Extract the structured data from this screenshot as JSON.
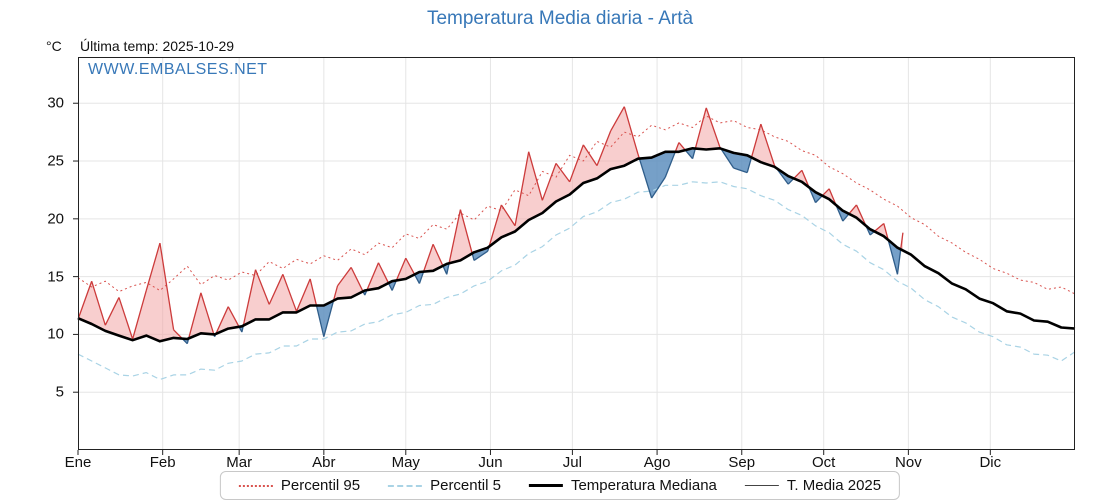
{
  "header": {
    "title": "Temperatura Media diaria - Artà",
    "unit_label": "°C",
    "last_temp_label": "Última temp: 2025-10-29",
    "watermark": "WWW.EMBALSES.NET"
  },
  "colors": {
    "title_blue": "#3878b8",
    "frame": "#222222",
    "grid": "#e5e5e5",
    "tick": "#222222"
  },
  "legend": {
    "items": [
      {
        "label": "Percentil 95"
      },
      {
        "label": "Percentil 5"
      },
      {
        "label": "Temperatura Mediana"
      },
      {
        "label": "T. Media 2025"
      }
    ]
  },
  "chart_data": {
    "type": "line",
    "title": "Temperatura Media diaria - Artà",
    "xlabel": "",
    "ylabel": "°C",
    "ylim": [
      0,
      34
    ],
    "yticks": [
      5,
      10,
      15,
      20,
      25,
      30
    ],
    "x_unit": "day_of_year",
    "x_total_days": 365,
    "x_months": [
      "Ene",
      "Feb",
      "Mar",
      "Abr",
      "May",
      "Jun",
      "Jul",
      "Ago",
      "Sep",
      "Oct",
      "Nov",
      "Dic"
    ],
    "month_start_days": [
      0,
      31,
      59,
      90,
      120,
      151,
      181,
      212,
      243,
      273,
      304,
      334
    ],
    "grid": true,
    "legend_position": "bottom",
    "fills": {
      "above_color": "#f2a6a6",
      "above_opacity": 0.55,
      "above_edge": "#cc3b3b",
      "below_color": "#5e8fbe",
      "below_opacity": 0.85,
      "below_edge": "#2f5d8a",
      "between": [
        "T. Media 2025",
        "Temperatura Mediana"
      ]
    },
    "series": [
      {
        "name": "Percentil 95",
        "style": "dotted",
        "color": "#d9534f",
        "width": 1,
        "x0": 0,
        "dx": 5,
        "y": [
          14.9,
          14.1,
          14.6,
          13.7,
          14.2,
          14.5,
          13.8,
          14.8,
          15.9,
          14.3,
          15.1,
          14.7,
          15.4,
          15.1,
          16.3,
          15.7,
          16.5,
          16.1,
          16.8,
          16.4,
          17.4,
          16.9,
          17.9,
          17.5,
          18.7,
          18.3,
          19.5,
          19.1,
          20.5,
          19.9,
          21.1,
          20.7,
          22.5,
          22.0,
          24.1,
          23.6,
          25.5,
          25.0,
          26.7,
          26.2,
          27.5,
          27.1,
          28.1,
          27.7,
          28.3,
          27.9,
          28.9,
          28.3,
          28.5,
          27.9,
          27.7,
          27.1,
          26.7,
          25.9,
          25.5,
          24.5,
          23.9,
          23.1,
          22.5,
          21.7,
          21.1,
          20.1,
          19.5,
          18.5,
          17.9,
          17.1,
          16.5,
          15.7,
          15.3,
          14.7,
          14.5,
          13.9,
          14.1,
          13.5
        ]
      },
      {
        "name": "Percentil 5",
        "style": "dashed",
        "color": "#a9d3e5",
        "width": 1.2,
        "x0": 0,
        "dx": 5,
        "y": [
          8.3,
          7.7,
          7.1,
          6.5,
          6.4,
          6.7,
          6.1,
          6.5,
          6.5,
          7.0,
          6.9,
          7.5,
          7.7,
          8.3,
          8.4,
          9.0,
          9.0,
          9.6,
          9.6,
          10.2,
          10.3,
          10.9,
          11.1,
          11.7,
          11.9,
          12.5,
          12.6,
          13.2,
          13.5,
          14.2,
          14.6,
          15.5,
          16.0,
          17.0,
          17.6,
          18.6,
          19.2,
          20.2,
          20.6,
          21.4,
          21.7,
          22.3,
          22.4,
          22.9,
          22.9,
          23.2,
          23.1,
          23.2,
          22.8,
          22.6,
          22.0,
          21.6,
          20.8,
          20.3,
          19.4,
          18.8,
          17.8,
          17.2,
          16.2,
          15.6,
          14.6,
          14.0,
          13.0,
          12.4,
          11.5,
          11.0,
          10.2,
          9.8,
          9.1,
          8.9,
          8.3,
          8.2,
          7.7,
          8.5
        ]
      },
      {
        "name": "Temperatura Mediana",
        "style": "solid",
        "color": "#000000",
        "width": 2.6,
        "x0": 0,
        "dx": 5,
        "y": [
          11.4,
          10.9,
          10.3,
          9.9,
          9.5,
          9.9,
          9.4,
          9.7,
          9.6,
          10.1,
          10.0,
          10.5,
          10.7,
          11.3,
          11.3,
          11.9,
          11.9,
          12.5,
          12.5,
          13.1,
          13.2,
          13.8,
          14.0,
          14.6,
          14.8,
          15.4,
          15.5,
          16.1,
          16.4,
          17.1,
          17.5,
          18.4,
          18.9,
          19.9,
          20.5,
          21.5,
          22.1,
          23.1,
          23.5,
          24.3,
          24.6,
          25.2,
          25.3,
          25.8,
          25.8,
          26.1,
          26.0,
          26.1,
          25.7,
          25.5,
          24.9,
          24.5,
          23.7,
          23.2,
          22.3,
          21.7,
          20.7,
          20.1,
          19.1,
          18.5,
          17.5,
          16.9,
          15.9,
          15.3,
          14.4,
          13.9,
          13.1,
          12.7,
          12.0,
          11.8,
          11.2,
          11.1,
          10.6,
          10.5
        ]
      },
      {
        "name": "T. Media 2025",
        "style": "solid",
        "color": "#333333",
        "width": 1.2,
        "x": [
          0,
          5,
          10,
          15,
          20,
          25,
          30,
          35,
          40,
          45,
          50,
          55,
          60,
          65,
          70,
          75,
          80,
          85,
          90,
          95,
          100,
          105,
          110,
          115,
          120,
          125,
          130,
          135,
          140,
          145,
          150,
          155,
          160,
          165,
          170,
          175,
          180,
          185,
          190,
          195,
          200,
          205,
          210,
          215,
          220,
          225,
          230,
          235,
          240,
          245,
          250,
          255,
          260,
          265,
          270,
          275,
          280,
          285,
          290,
          295,
          300,
          302
        ],
        "y": [
          11.3,
          14.6,
          10.8,
          13.2,
          9.6,
          13.8,
          17.9,
          10.4,
          9.2,
          13.6,
          9.8,
          12.4,
          10.2,
          15.6,
          12.6,
          15.2,
          12.0,
          14.8,
          9.8,
          14.2,
          15.8,
          13.4,
          16.2,
          13.8,
          16.6,
          14.4,
          17.8,
          15.2,
          20.8,
          16.4,
          17.2,
          21.2,
          19.4,
          25.8,
          21.6,
          24.8,
          23.2,
          26.4,
          24.6,
          27.6,
          29.7,
          25.6,
          21.8,
          23.6,
          26.6,
          25.2,
          29.6,
          26.2,
          24.4,
          24.0,
          28.2,
          24.6,
          23.0,
          24.2,
          21.4,
          22.6,
          19.8,
          21.2,
          18.6,
          19.6,
          15.2,
          18.8
        ]
      }
    ]
  }
}
